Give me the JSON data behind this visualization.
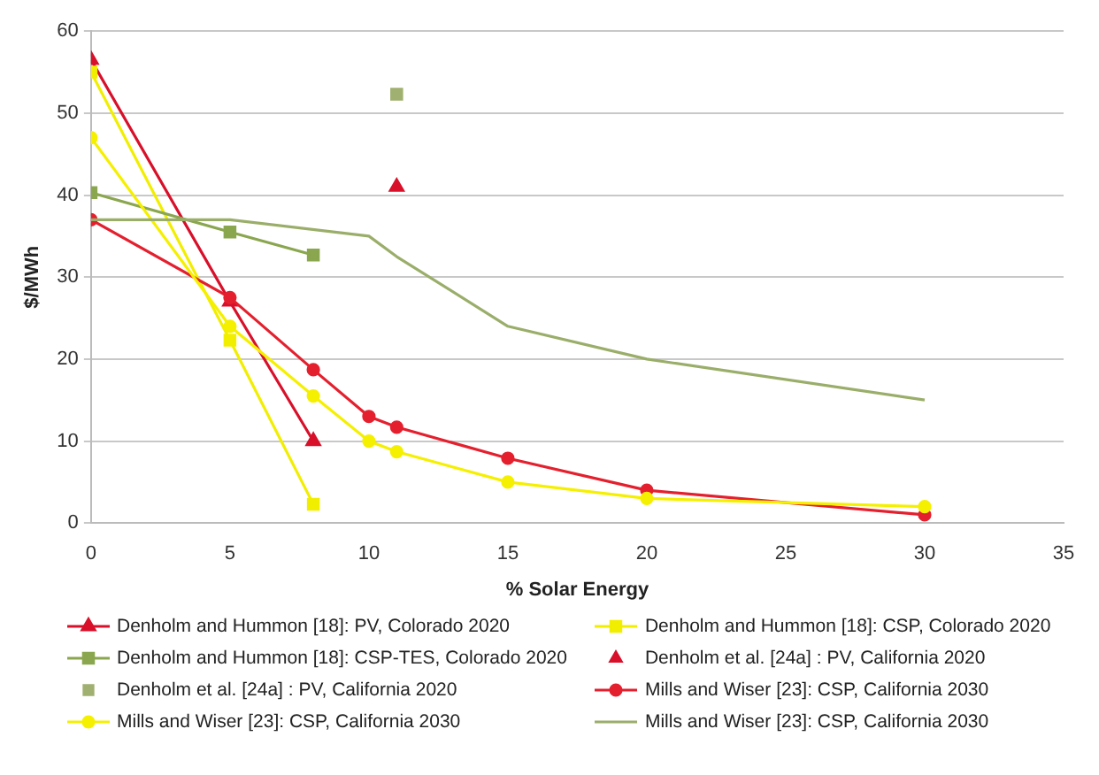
{
  "chart_data": {
    "type": "line",
    "xlabel": "% Solar Energy",
    "ylabel": "$/MWh",
    "xlim": [
      0,
      35
    ],
    "xticks": [
      0,
      5,
      10,
      15,
      20,
      25,
      30,
      35
    ],
    "ylim": [
      0,
      60
    ],
    "yticks": [
      0,
      10,
      20,
      30,
      40,
      50,
      60
    ],
    "grid": "y",
    "legend": "bottom",
    "series": [
      {
        "name": "Denholm and Hummon [18]: PV, Colorado 2020",
        "type": "line",
        "marker": "triangle",
        "color": "#d8102a",
        "x": [
          0,
          5,
          8
        ],
        "values": [
          56.5,
          27,
          10
        ]
      },
      {
        "name": "Denholm and Hummon [18]: CSP, Colorado 2020",
        "type": "line",
        "marker": "square",
        "color": "#f2ee00",
        "x": [
          0,
          5,
          8
        ],
        "values": [
          55,
          22.3,
          2.3
        ]
      },
      {
        "name": "Denholm and Hummon [18]: CSP-TES, Colorado 2020",
        "type": "line",
        "marker": "square",
        "color": "#8aa64e",
        "x": [
          0,
          5,
          8
        ],
        "values": [
          40.3,
          35.5,
          32.7
        ]
      },
      {
        "name": "Denholm et al. [24a] : PV, California 2020",
        "type": "scatter",
        "marker": "triangle",
        "color": "#d8102a",
        "x": [
          11
        ],
        "values": [
          41
        ]
      },
      {
        "name": "Denholm et al. [24a] : PV, California 2020",
        "type": "scatter",
        "marker": "square",
        "color": "#a0b070",
        "x": [
          11
        ],
        "values": [
          52.3
        ]
      },
      {
        "name": "Mills and Wiser [23]: CSP, California 2030",
        "type": "line",
        "marker": "circle",
        "color": "#e4202e",
        "x": [
          0,
          5,
          8,
          10,
          11,
          15,
          20,
          30
        ],
        "values": [
          37,
          27.5,
          18.7,
          13,
          11.7,
          7.9,
          4,
          1
        ]
      },
      {
        "name": "Mills and Wiser [23]: CSP, California 2030",
        "type": "line",
        "marker": "circle",
        "color": "#f5f000",
        "x": [
          0,
          5,
          8,
          10,
          11,
          15,
          20,
          30
        ],
        "values": [
          47,
          24,
          15.5,
          10,
          8.7,
          5,
          3,
          2
        ]
      },
      {
        "name": "Mills and Wiser [23]: CSP, California 2030",
        "type": "line",
        "marker": "none",
        "color": "#9aae6a",
        "x": [
          0,
          5,
          10,
          11,
          15,
          20,
          30
        ],
        "values": [
          37,
          37,
          35,
          32.5,
          24,
          20,
          15
        ]
      }
    ]
  }
}
